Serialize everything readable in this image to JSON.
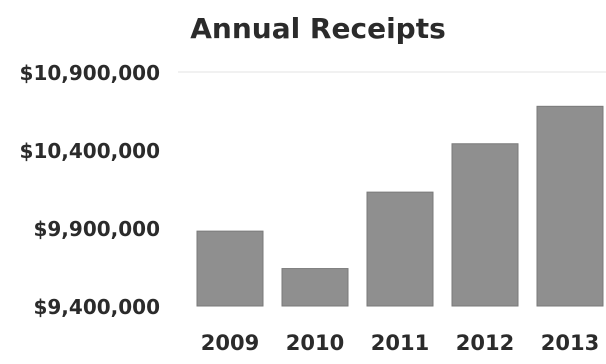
{
  "chart_data": {
    "type": "bar",
    "title": "Annual Receipts",
    "xlabel": "",
    "ylabel": "",
    "categories": [
      "2009",
      "2010",
      "2011",
      "2012",
      "2013"
    ],
    "values": [
      9880000,
      9640000,
      10130000,
      10440000,
      10680000
    ],
    "ylim": [
      9400000,
      10900000
    ],
    "yticks": [
      9400000,
      9900000,
      10400000,
      10900000
    ],
    "ytick_labels": [
      "$9,400,000",
      "$9,900,000",
      "$10,400,000",
      "$10,900,000"
    ],
    "grid": false,
    "colors": {
      "bar": "#8f8f8f",
      "bar_edge": "#7a7a7a",
      "text": "#2b2b2b"
    }
  }
}
